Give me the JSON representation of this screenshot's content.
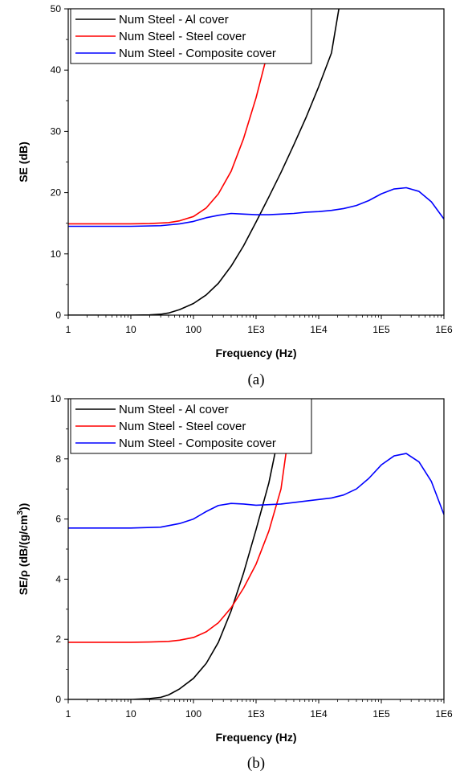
{
  "chart_data": [
    {
      "type": "line",
      "panel_label": "(a)",
      "xlabel": "Frequency (Hz)",
      "ylabel": "SE (dB)",
      "xscale": "log",
      "xlim": [
        1,
        1000000
      ],
      "ylim": [
        0,
        50
      ],
      "x_ticks": [
        {
          "value": 1,
          "label": "1"
        },
        {
          "value": 10,
          "label": "10"
        },
        {
          "value": 100,
          "label": "100"
        },
        {
          "value": 1000,
          "label": "1E3"
        },
        {
          "value": 10000,
          "label": "1E4"
        },
        {
          "value": 100000,
          "label": "1E5"
        },
        {
          "value": 1000000,
          "label": "1E6"
        }
      ],
      "y_ticks": [
        {
          "value": 0,
          "label": "0"
        },
        {
          "value": 10,
          "label": "10"
        },
        {
          "value": 20,
          "label": "20"
        },
        {
          "value": 30,
          "label": "30"
        },
        {
          "value": 40,
          "label": "40"
        },
        {
          "value": 50,
          "label": "50"
        }
      ],
      "legend_position": "top-left",
      "grid": false,
      "series": [
        {
          "name": "Num Steel - Al cover",
          "color": "#000000",
          "points": [
            [
              1,
              0
            ],
            [
              10,
              0
            ],
            [
              20,
              0.05
            ],
            [
              30,
              0.15
            ],
            [
              40,
              0.35
            ],
            [
              60,
              0.9
            ],
            [
              100,
              1.9
            ],
            [
              160,
              3.3
            ],
            [
              250,
              5.2
            ],
            [
              400,
              8.0
            ],
            [
              630,
              11.3
            ],
            [
              1000,
              15.2
            ],
            [
              1600,
              19.3
            ],
            [
              2500,
              23.3
            ],
            [
              4000,
              27.8
            ],
            [
              6300,
              32.3
            ],
            [
              10000,
              37.3
            ],
            [
              16000,
              42.8
            ],
            [
              21000,
              50
            ]
          ]
        },
        {
          "name": "Num Steel - Steel cover",
          "color": "#ff0000",
          "points": [
            [
              1,
              14.9
            ],
            [
              10,
              14.9
            ],
            [
              20,
              14.95
            ],
            [
              40,
              15.1
            ],
            [
              60,
              15.4
            ],
            [
              100,
              16.1
            ],
            [
              160,
              17.5
            ],
            [
              250,
              19.8
            ],
            [
              400,
              23.5
            ],
            [
              630,
              28.8
            ],
            [
              1000,
              35.5
            ],
            [
              1500,
              42.5
            ],
            [
              2000,
              50
            ]
          ]
        },
        {
          "name": "Num Steel - Composite cover",
          "color": "#0000ff",
          "points": [
            [
              1,
              14.5
            ],
            [
              10,
              14.5
            ],
            [
              30,
              14.6
            ],
            [
              60,
              14.9
            ],
            [
              100,
              15.3
            ],
            [
              160,
              15.9
            ],
            [
              250,
              16.3
            ],
            [
              400,
              16.6
            ],
            [
              630,
              16.5
            ],
            [
              1000,
              16.4
            ],
            [
              1600,
              16.4
            ],
            [
              2500,
              16.5
            ],
            [
              4000,
              16.6
            ],
            [
              6300,
              16.8
            ],
            [
              10000,
              16.9
            ],
            [
              16000,
              17.1
            ],
            [
              25000,
              17.4
            ],
            [
              40000,
              17.9
            ],
            [
              63000,
              18.7
            ],
            [
              100000,
              19.8
            ],
            [
              160000,
              20.6
            ],
            [
              250000,
              20.8
            ],
            [
              400000,
              20.2
            ],
            [
              630000,
              18.5
            ],
            [
              1000000,
              15.7
            ]
          ]
        }
      ]
    },
    {
      "type": "line",
      "panel_label": "(b)",
      "xlabel": "Frequency (Hz)",
      "ylabel": "SE/ρ (dB/(g/cm",
      "ylabel_sup": "3",
      "ylabel_end": "))",
      "xscale": "log",
      "xlim": [
        1,
        1000000
      ],
      "ylim": [
        0,
        10
      ],
      "x_ticks": [
        {
          "value": 1,
          "label": "1"
        },
        {
          "value": 10,
          "label": "10"
        },
        {
          "value": 100,
          "label": "100"
        },
        {
          "value": 1000,
          "label": "1E3"
        },
        {
          "value": 10000,
          "label": "1E4"
        },
        {
          "value": 100000,
          "label": "1E5"
        },
        {
          "value": 1000000,
          "label": "1E6"
        }
      ],
      "y_ticks": [
        {
          "value": 0,
          "label": "0"
        },
        {
          "value": 2,
          "label": "2"
        },
        {
          "value": 4,
          "label": "4"
        },
        {
          "value": 6,
          "label": "6"
        },
        {
          "value": 8,
          "label": "8"
        },
        {
          "value": 10,
          "label": "10"
        }
      ],
      "legend_position": "top-left",
      "grid": false,
      "series": [
        {
          "name": "Num Steel - Al cover",
          "color": "#000000",
          "points": [
            [
              1,
              0
            ],
            [
              10,
              0
            ],
            [
              20,
              0.03
            ],
            [
              30,
              0.07
            ],
            [
              40,
              0.15
            ],
            [
              60,
              0.35
            ],
            [
              100,
              0.7
            ],
            [
              160,
              1.2
            ],
            [
              250,
              1.9
            ],
            [
              400,
              2.95
            ],
            [
              630,
              4.2
            ],
            [
              1000,
              5.65
            ],
            [
              1600,
              7.2
            ],
            [
              2200,
              8.6
            ]
          ]
        },
        {
          "name": "Num Steel - Steel cover",
          "color": "#ff0000",
          "points": [
            [
              1,
              1.9
            ],
            [
              10,
              1.9
            ],
            [
              20,
              1.91
            ],
            [
              40,
              1.93
            ],
            [
              60,
              1.97
            ],
            [
              100,
              2.06
            ],
            [
              160,
              2.25
            ],
            [
              250,
              2.55
            ],
            [
              400,
              3.05
            ],
            [
              630,
              3.7
            ],
            [
              1000,
              4.5
            ],
            [
              1600,
              5.6
            ],
            [
              2500,
              7.0
            ],
            [
              3200,
              8.6
            ]
          ]
        },
        {
          "name": "Num Steel - Composite cover",
          "color": "#0000ff",
          "points": [
            [
              1,
              5.7
            ],
            [
              10,
              5.7
            ],
            [
              30,
              5.73
            ],
            [
              60,
              5.85
            ],
            [
              100,
              6.0
            ],
            [
              160,
              6.25
            ],
            [
              250,
              6.45
            ],
            [
              400,
              6.52
            ],
            [
              630,
              6.5
            ],
            [
              1000,
              6.46
            ],
            [
              1600,
              6.48
            ],
            [
              2500,
              6.5
            ],
            [
              4000,
              6.55
            ],
            [
              6300,
              6.6
            ],
            [
              10000,
              6.65
            ],
            [
              16000,
              6.7
            ],
            [
              25000,
              6.8
            ],
            [
              40000,
              7.0
            ],
            [
              63000,
              7.35
            ],
            [
              100000,
              7.8
            ],
            [
              160000,
              8.1
            ],
            [
              250000,
              8.18
            ],
            [
              400000,
              7.9
            ],
            [
              630000,
              7.25
            ],
            [
              1000000,
              6.15
            ]
          ]
        }
      ]
    }
  ]
}
